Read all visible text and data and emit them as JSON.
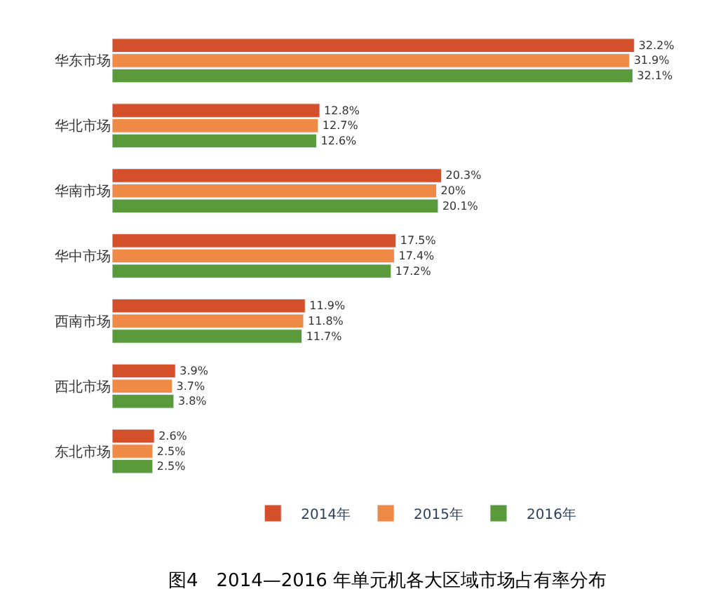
{
  "chart_data": {
    "type": "bar",
    "orientation": "horizontal",
    "categories": [
      "华东市场",
      "华北市场",
      "华南市场",
      "华中市场",
      "西南市场",
      "西北市场",
      "东北市场"
    ],
    "series": [
      {
        "name": "2014年",
        "color": "#d4502a",
        "values": [
          32.2,
          12.8,
          20.3,
          17.5,
          11.9,
          3.9,
          2.6
        ],
        "value_labels": [
          "32.2%",
          "12.8%",
          "20.3%",
          "17.5%",
          "11.9%",
          "3.9%",
          "2.6%"
        ]
      },
      {
        "name": "2015年",
        "color": "#ee8a45",
        "values": [
          31.9,
          12.7,
          20,
          17.4,
          11.8,
          3.7,
          2.5
        ],
        "value_labels": [
          "31.9%",
          "12.7%",
          "20%",
          "17.4%",
          "11.8%",
          "3.7%",
          "2.5%"
        ]
      },
      {
        "name": "2016年",
        "color": "#5a9a3a",
        "values": [
          32.1,
          12.6,
          20.1,
          17.2,
          11.7,
          3.8,
          2.5
        ],
        "value_labels": [
          "32.1%",
          "12.6%",
          "20.1%",
          "17.2%",
          "11.7%",
          "3.8%",
          "2.5%"
        ]
      }
    ],
    "legend": "bottom",
    "annotations": [
      "图4　2014—2016 年单元机各大区域市场占有率分布"
    ]
  }
}
